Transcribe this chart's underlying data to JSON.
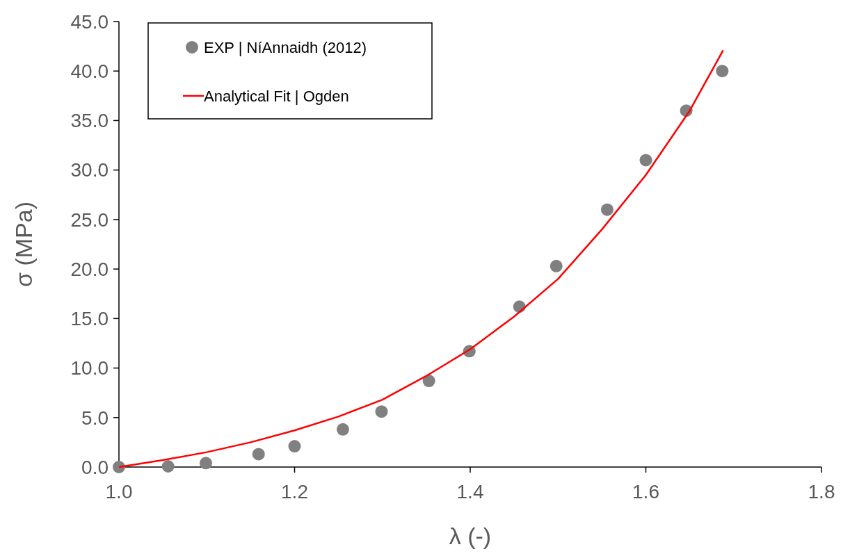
{
  "chart_data": {
    "type": "scatter",
    "xlabel": "λ (-)",
    "ylabel": "σ (MPa)",
    "xlim": [
      1.0,
      1.8
    ],
    "xticks": [
      {
        "value": 1.0,
        "label": "1.0"
      },
      {
        "value": 1.2,
        "label": "1.2"
      },
      {
        "value": 1.4,
        "label": "1.4"
      },
      {
        "value": 1.6,
        "label": "1.6"
      },
      {
        "value": 1.8,
        "label": "1.8"
      }
    ],
    "ylim": [
      0,
      45
    ],
    "yticks": [
      {
        "value": 0,
        "label": "0.0"
      },
      {
        "value": 5,
        "label": "5.0"
      },
      {
        "value": 10,
        "label": "10.0"
      },
      {
        "value": 15,
        "label": "15.0"
      },
      {
        "value": 20,
        "label": "20.0"
      },
      {
        "value": 25,
        "label": "25.0"
      },
      {
        "value": 30,
        "label": "30.0"
      },
      {
        "value": 35,
        "label": "35.0"
      },
      {
        "value": 40,
        "label": "40.0"
      },
      {
        "value": 45,
        "label": "45.0"
      }
    ],
    "grid": false,
    "legend": "top left",
    "series": [
      {
        "name": "EXP | NíAnnaidh (2012)",
        "marker": "circle",
        "color": "#808080",
        "x": [
          1.0,
          1.056,
          1.099,
          1.159,
          1.2,
          1.255,
          1.299,
          1.353,
          1.399,
          1.456,
          1.498,
          1.556,
          1.6,
          1.646,
          1.687
        ],
        "values": [
          0,
          0.07,
          0.4,
          1.3,
          2.1,
          3.8,
          5.6,
          8.7,
          11.7,
          16.2,
          20.3,
          26.0,
          31.0,
          36.0,
          40.0
        ]
      },
      {
        "name": "Analytical Fit | Ogden",
        "type": "line",
        "marker": "none",
        "color": "#ff0000",
        "line_style": "solid",
        "x": [
          1.0,
          1.05,
          1.1,
          1.15,
          1.2,
          1.25,
          1.3,
          1.35,
          1.4,
          1.45,
          1.5,
          1.55,
          1.6,
          1.65,
          1.688
        ],
        "values": [
          0,
          0.7,
          1.5,
          2.5,
          3.7,
          5.1,
          6.8,
          9.2,
          11.9,
          15.2,
          19.0,
          24.0,
          29.5,
          36.0,
          42.1
        ]
      }
    ]
  }
}
